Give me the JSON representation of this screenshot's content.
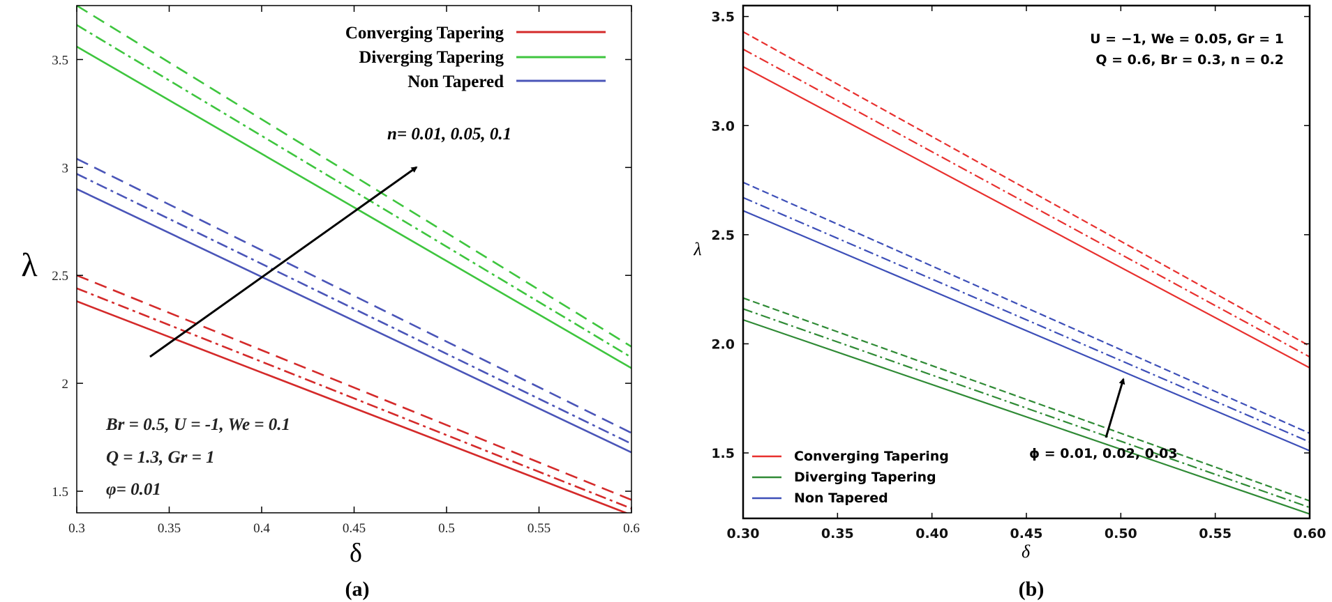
{
  "chart_data": [
    {
      "panel": "a",
      "type": "line",
      "caption": "(a)",
      "xlabel": "δ",
      "ylabel": "λ",
      "xlim": [
        0.3,
        0.6
      ],
      "ylim": [
        1.4,
        3.75
      ],
      "xticks": [
        "0.3",
        "0.35",
        "0.4",
        "0.45",
        "0.5",
        "0.55",
        "0.6"
      ],
      "yticks": [
        "1.5",
        "2",
        "2.5",
        "3",
        "3.5"
      ],
      "legend": [
        {
          "label": "Converging Tapering",
          "color": "#d42a2a"
        },
        {
          "label": "Diverging Tapering",
          "color": "#3ec53e"
        },
        {
          "label": "Non Tapered",
          "color": "#4a55b8"
        }
      ],
      "annotations": {
        "arrow_label": "n= 0.01, 0.05, 0.1",
        "params": [
          "Br = 0.5,  U = -1, We = 0.1",
          "Q = 1.3, Gr = 1",
          "φ= 0.01"
        ]
      },
      "series": [
        {
          "name": "Converging Tapering n=0.01",
          "color": "#d42a2a",
          "dash": "solid",
          "x": [
            0.3,
            0.6
          ],
          "y": [
            2.38,
            1.39
          ]
        },
        {
          "name": "Converging Tapering n=0.05",
          "color": "#d42a2a",
          "dash": "dashdot",
          "x": [
            0.3,
            0.6
          ],
          "y": [
            2.44,
            1.42
          ]
        },
        {
          "name": "Converging Tapering n=0.1",
          "color": "#d42a2a",
          "dash": "dash",
          "x": [
            0.3,
            0.6
          ],
          "y": [
            2.5,
            1.46
          ]
        },
        {
          "name": "Diverging Tapering n=0.01",
          "color": "#3ec53e",
          "dash": "solid",
          "x": [
            0.3,
            0.6
          ],
          "y": [
            3.56,
            2.07
          ]
        },
        {
          "name": "Diverging Tapering n=0.05",
          "color": "#3ec53e",
          "dash": "dashdot",
          "x": [
            0.3,
            0.6
          ],
          "y": [
            3.66,
            2.12
          ]
        },
        {
          "name": "Diverging Tapering n=0.1",
          "color": "#3ec53e",
          "dash": "dash",
          "x": [
            0.3,
            0.6
          ],
          "y": [
            3.75,
            2.17
          ]
        },
        {
          "name": "Non Tapered n=0.01",
          "color": "#4a55b8",
          "dash": "solid",
          "x": [
            0.3,
            0.6
          ],
          "y": [
            2.9,
            1.68
          ]
        },
        {
          "name": "Non Tapered n=0.05",
          "color": "#4a55b8",
          "dash": "dashdot",
          "x": [
            0.3,
            0.6
          ],
          "y": [
            2.97,
            1.72
          ]
        },
        {
          "name": "Non Tapered n=0.1",
          "color": "#4a55b8",
          "dash": "dash",
          "x": [
            0.3,
            0.6
          ],
          "y": [
            3.04,
            1.77
          ]
        }
      ]
    },
    {
      "panel": "b",
      "type": "line",
      "caption": "(b)",
      "xlabel": "δ",
      "ylabel": "λ",
      "xlim": [
        0.3,
        0.6
      ],
      "ylim": [
        1.2,
        3.55
      ],
      "xticks": [
        "0.30",
        "0.35",
        "0.40",
        "0.45",
        "0.50",
        "0.55",
        "0.60"
      ],
      "yticks": [
        "1.5",
        "2.0",
        "2.5",
        "3.0",
        "3.5"
      ],
      "legend": [
        {
          "label": "Converging Tapering",
          "color": "#e8302e"
        },
        {
          "label": "Diverging Tapering",
          "color": "#2f8a35"
        },
        {
          "label": "Non Tapered",
          "color": "#3d4fb8"
        }
      ],
      "annotations": {
        "arrow_label": "ϕ = 0.01, 0.02, 0.03",
        "params": [
          "U = −1, We = 0.05, Gr = 1",
          "Q = 0.6, Br = 0.3, n = 0.2"
        ]
      },
      "series": [
        {
          "name": "Converging Tapering ϕ=0.01",
          "color": "#e8302e",
          "dash": "solid",
          "x": [
            0.3,
            0.6
          ],
          "y": [
            3.27,
            1.89
          ]
        },
        {
          "name": "Converging Tapering ϕ=0.02",
          "color": "#e8302e",
          "dash": "dashdot",
          "x": [
            0.3,
            0.6
          ],
          "y": [
            3.35,
            1.94
          ]
        },
        {
          "name": "Converging Tapering ϕ=0.03",
          "color": "#e8302e",
          "dash": "dash",
          "x": [
            0.3,
            0.6
          ],
          "y": [
            3.43,
            1.99
          ]
        },
        {
          "name": "Diverging Tapering ϕ=0.01",
          "color": "#2f8a35",
          "dash": "solid",
          "x": [
            0.3,
            0.6
          ],
          "y": [
            2.11,
            1.22
          ]
        },
        {
          "name": "Diverging Tapering ϕ=0.02",
          "color": "#2f8a35",
          "dash": "dashdot",
          "x": [
            0.3,
            0.6
          ],
          "y": [
            2.16,
            1.25
          ]
        },
        {
          "name": "Diverging Tapering ϕ=0.03",
          "color": "#2f8a35",
          "dash": "dash",
          "x": [
            0.3,
            0.6
          ],
          "y": [
            2.21,
            1.28
          ]
        },
        {
          "name": "Non Tapered ϕ=0.01",
          "color": "#3d4fb8",
          "dash": "solid",
          "x": [
            0.3,
            0.6
          ],
          "y": [
            2.61,
            1.51
          ]
        },
        {
          "name": "Non Tapered ϕ=0.02",
          "color": "#3d4fb8",
          "dash": "dashdot",
          "x": [
            0.3,
            0.6
          ],
          "y": [
            2.67,
            1.55
          ]
        },
        {
          "name": "Non Tapered ϕ=0.03",
          "color": "#3d4fb8",
          "dash": "dash",
          "x": [
            0.3,
            0.6
          ],
          "y": [
            2.74,
            1.59
          ]
        }
      ]
    }
  ]
}
